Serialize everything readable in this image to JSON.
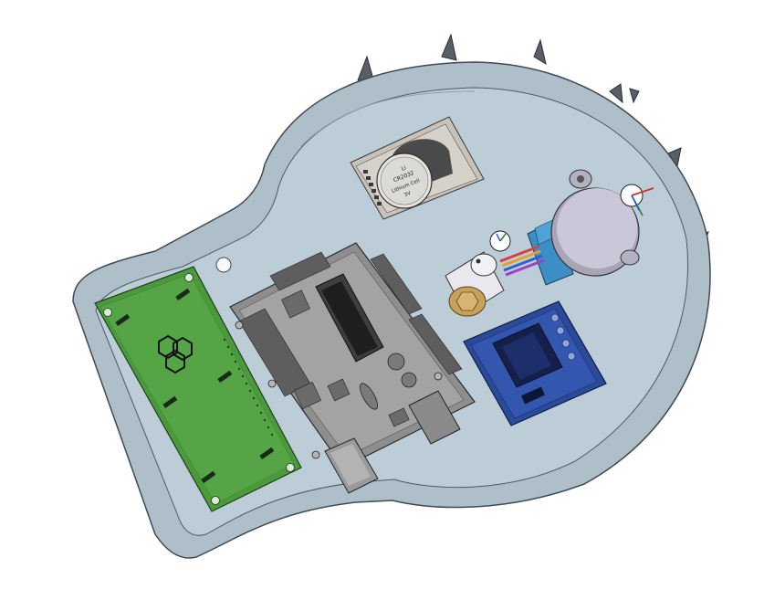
{
  "scene": {
    "kind": "cad-3d-assembly-render",
    "background": "#ffffff"
  },
  "colors": {
    "enclosure": "#b9cbd6",
    "enclosure_edge": "#3f4a52",
    "green_pcb": "#4c9a3e",
    "blue_pcb": "#2e4fa0",
    "gray_board": "#9a9a9a",
    "motor": "#c9c7d6",
    "motor_driver": "#3a8fc4",
    "brass": "#c8a15a",
    "wire_colors": [
      "#d84040",
      "#e0a030",
      "#3060d0",
      "#a040c0"
    ]
  },
  "rtc_module": {
    "lines": [
      "Li",
      "CR2032",
      "Lithium Cell",
      "3V"
    ]
  },
  "icons": {
    "logo": "hexagon-trefoil-logo",
    "triad": "coordinate-triad-icon"
  }
}
